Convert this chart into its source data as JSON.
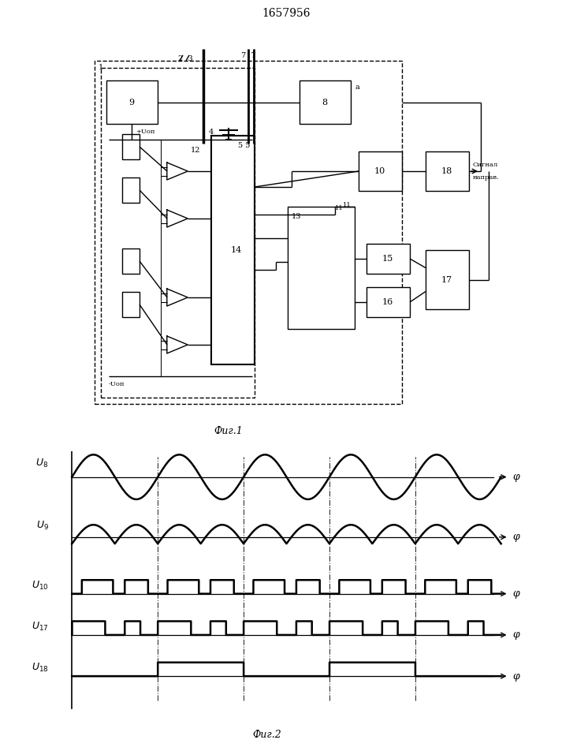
{
  "title": "1657956",
  "fig1_caption": "Фиг.1",
  "fig2_caption": "Фиг.2",
  "background_color": "#ffffff",
  "line_color": "#000000",
  "signal_label_line1": "Сигнал",
  "signal_label_line2": "направ.",
  "plus_uop": "+Uоп",
  "minus_uop": "-Uоп",
  "label_a": "a"
}
